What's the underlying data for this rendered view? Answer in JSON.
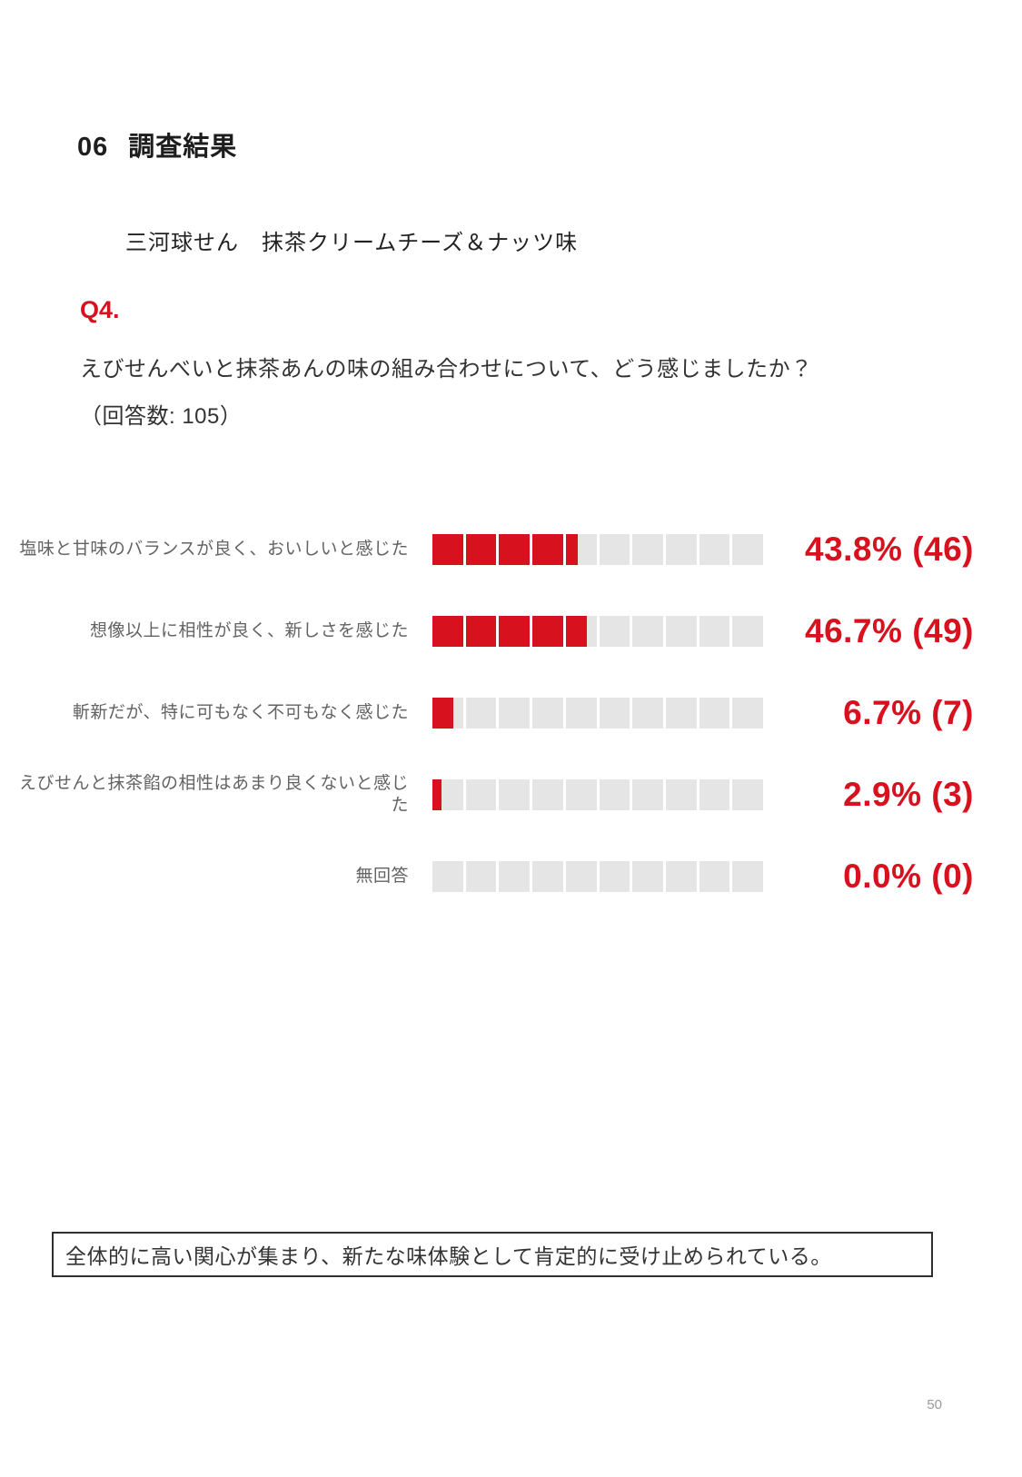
{
  "page": {
    "section_number": "06",
    "section_title": "調査結果",
    "product_title": "三河球せん　抹茶クリームチーズ＆ナッツ味",
    "question_id": "Q4.",
    "question_text": "えびせんべいと抹茶あんの味の組み合わせについて、どう感じましたか？",
    "response_count_label": "（回答数: 105）",
    "summary_note": "全体的に高い関心が集まり、新たな味体験として肯定的に受け止められている。",
    "page_number": "50"
  },
  "colors": {
    "accent_red": "#d8111e",
    "bar_empty_gray": "#e5e5e5",
    "label_gray": "#636363",
    "box_border": "#2f2f2f"
  },
  "chart_data": {
    "type": "bar",
    "orientation": "horizontal",
    "segments_per_bar": 10,
    "total_responses": 105,
    "categories": [
      "塩味と甘味のバランスが良く、おいしいと感じた",
      "想像以上に相性が良く、新しさを感じた",
      "斬新だが、特に可もなく不可もなく感じた",
      "えびせんと抹茶餡の相性はあまり良くないと感じた",
      "無回答"
    ],
    "values_percent": [
      43.8,
      46.7,
      6.7,
      2.9,
      0.0
    ],
    "values_count": [
      46,
      49,
      7,
      3,
      0
    ],
    "value_labels": [
      "43.8% (46)",
      "46.7% (49)",
      "6.7% (7)",
      "2.9% (3)",
      "0.0% (0)"
    ],
    "xlim": [
      0,
      100
    ],
    "grid": false,
    "legend": false
  }
}
